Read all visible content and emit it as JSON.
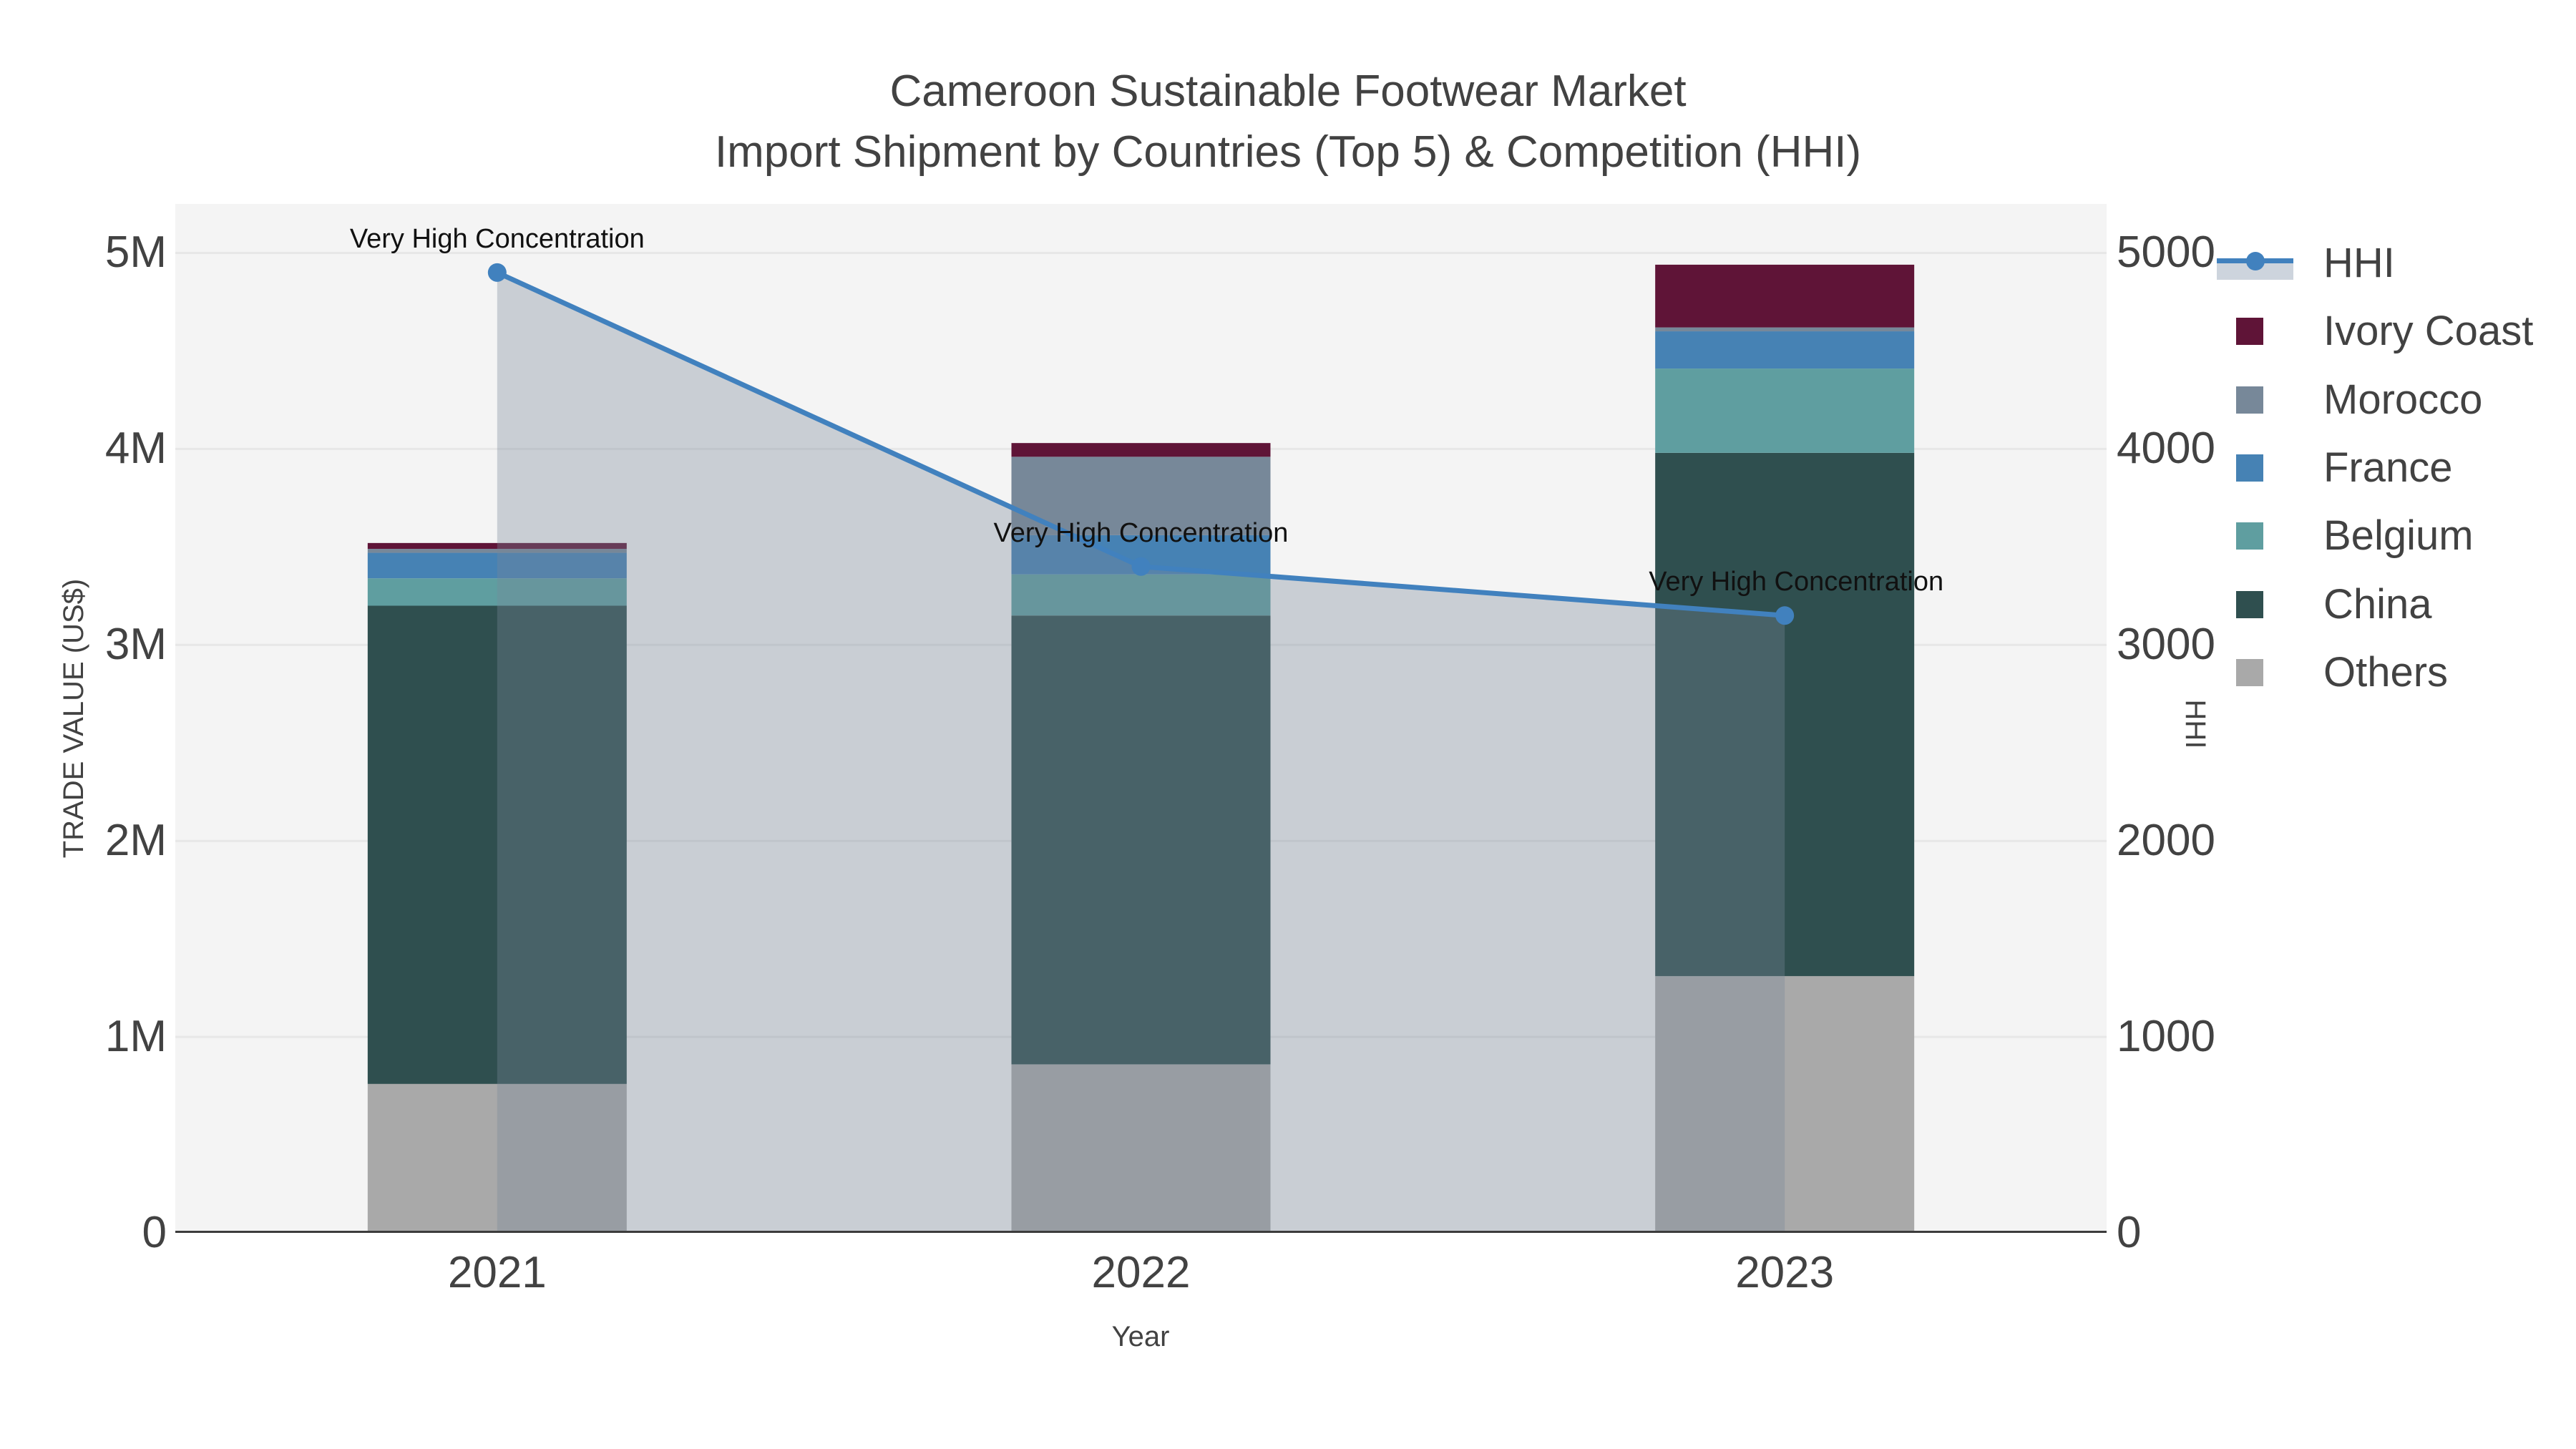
{
  "title": {
    "line1": "Cameroon Sustainable Footwear Market",
    "line2": "Import Shipment by Countries (Top 5) & Competition (HHI)"
  },
  "axes": {
    "left": {
      "title": "TRADE VALUE (US$)",
      "ticks": [
        "0",
        "1M",
        "2M",
        "3M",
        "4M",
        "5M"
      ]
    },
    "right": {
      "title": "HHI",
      "ticks": [
        "0",
        "1000",
        "2000",
        "3000",
        "4000",
        "5000"
      ]
    },
    "x": {
      "title": "Year",
      "ticks": [
        "2021",
        "2022",
        "2023"
      ]
    }
  },
  "legend": {
    "items": [
      {
        "label": "HHI",
        "type": "line",
        "color": "#4181BE",
        "band_color": "#CDD4DD"
      },
      {
        "label": "Ivory Coast",
        "type": "square",
        "color": "#5F1437"
      },
      {
        "label": "Morocco",
        "type": "square",
        "color": "#778899"
      },
      {
        "label": "France",
        "type": "square",
        "color": "#4682B4"
      },
      {
        "label": "Belgium",
        "type": "square",
        "color": "#5F9EA0"
      },
      {
        "label": "China",
        "type": "square",
        "color": "#2F4F4F"
      },
      {
        "label": "Others",
        "type": "square",
        "color": "#A9A9A9"
      }
    ]
  },
  "chart_data": {
    "type": "bar",
    "subtype": "stacked-bars-with-overlaid-line",
    "title": "Cameroon Sustainable Footwear Market — Import Shipment by Countries (Top 5) & Competition (HHI)",
    "categories": [
      "2021",
      "2022",
      "2023"
    ],
    "values_unit": "million US$",
    "series": [
      {
        "name": "Others",
        "color": "#A9A9A9",
        "values": [
          0.76,
          0.86,
          1.31
        ]
      },
      {
        "name": "China",
        "color": "#2F4F4F",
        "values": [
          2.44,
          2.29,
          2.67
        ]
      },
      {
        "name": "Belgium",
        "color": "#5F9EA0",
        "values": [
          0.14,
          0.21,
          0.43
        ]
      },
      {
        "name": "France",
        "color": "#4682B4",
        "values": [
          0.13,
          0.2,
          0.19
        ]
      },
      {
        "name": "Morocco",
        "color": "#778899",
        "values": [
          0.02,
          0.4,
          0.02
        ]
      },
      {
        "name": "Ivory Coast",
        "color": "#5F1437",
        "values": [
          0.03,
          0.07,
          0.32
        ]
      }
    ],
    "stack_totals": [
      3.52,
      4.03,
      4.94
    ],
    "line_series": {
      "name": "HHI",
      "axis": "right",
      "color": "#4181BE",
      "fill_color": "rgba(119,136,153,0.35)",
      "values": [
        4900,
        3400,
        3150
      ]
    },
    "annotations": [
      {
        "x": "2021",
        "text": "Very High Concentration"
      },
      {
        "x": "2022",
        "text": "Very High Concentration"
      },
      {
        "x": "2023",
        "text": "Very High Concentration"
      }
    ],
    "xlabel": "Year",
    "ylabel": "TRADE VALUE (US$)",
    "ylabel_right": "HHI",
    "ylim_left": [
      0,
      5.25
    ],
    "ylim_right": [
      0,
      5250
    ],
    "grid": "horizontal",
    "legend_position": "right"
  },
  "colors": {
    "background": "#FFFFFF",
    "plot_background": "#F4F4F4",
    "gridline": "#E7E7E7",
    "axis_line": "#3C3C3C",
    "text": "#424242",
    "annotation_text": "#111111"
  }
}
